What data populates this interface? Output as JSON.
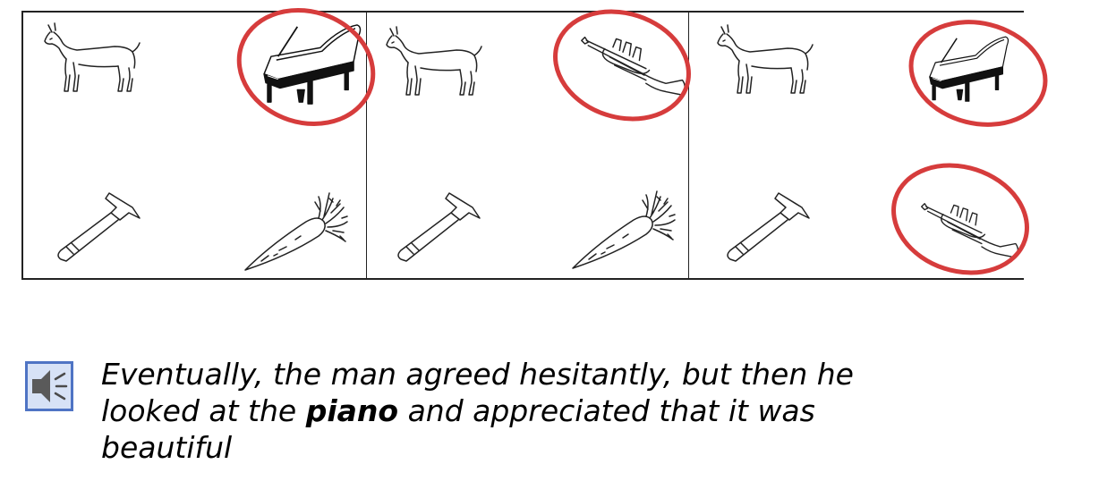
{
  "caption": {
    "line1": "Eventually, the man agreed hesitantly, but then he",
    "line2_before": "looked at the ",
    "line2_bold": "piano",
    "line2_after": " and appreciated that it was",
    "line3": "beautiful"
  },
  "audio_icon": "speaker-icon",
  "colors": {
    "circle": "#d63c3c",
    "border": "#222222",
    "speaker": "#4f74c4"
  },
  "panels": [
    {
      "pictures": [
        "goat",
        "piano",
        "hammer",
        "carrot"
      ],
      "circled": [
        "piano"
      ]
    },
    {
      "pictures": [
        "goat",
        "trumpet",
        "hammer",
        "carrot"
      ],
      "circled": [
        "trumpet"
      ]
    },
    {
      "pictures": [
        "goat",
        "piano",
        "hammer",
        "trumpet"
      ],
      "circled": [
        "piano",
        "trumpet"
      ]
    }
  ]
}
